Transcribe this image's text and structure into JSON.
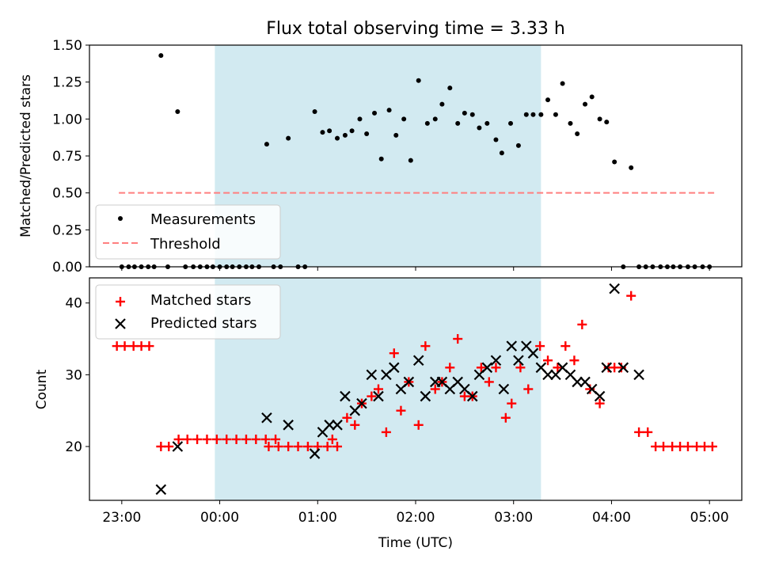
{
  "chart_data": [
    {
      "type": "scatter",
      "title": "Flux total observing time = 3.33 h",
      "xlabel": "",
      "ylabel": "Matched/Predicted stars",
      "ylim": [
        0,
        1.5
      ],
      "yticks": [
        "0.00",
        "0.25",
        "0.50",
        "0.75",
        "1.00",
        "1.25",
        "1.50"
      ],
      "x_unit": "hours after 23:00 UTC",
      "xlim": [
        -0.33,
        6.33
      ],
      "shaded_region": [
        0.95,
        4.28
      ],
      "shaded_color": "#add8e6",
      "legend_position": "lower left",
      "series": [
        {
          "name": "Measurements",
          "marker": "dot",
          "color": "#000000",
          "points": [
            [
              0.0,
              0
            ],
            [
              0.07,
              0
            ],
            [
              0.13,
              0
            ],
            [
              0.2,
              0
            ],
            [
              0.27,
              0
            ],
            [
              0.33,
              0
            ],
            [
              0.4,
              1.43
            ],
            [
              0.47,
              0
            ],
            [
              0.57,
              1.05
            ],
            [
              0.65,
              0
            ],
            [
              0.73,
              0
            ],
            [
              0.8,
              0
            ],
            [
              0.87,
              0
            ],
            [
              0.93,
              0
            ],
            [
              1.0,
              0
            ],
            [
              1.07,
              0
            ],
            [
              1.13,
              0
            ],
            [
              1.2,
              0
            ],
            [
              1.27,
              0
            ],
            [
              1.33,
              0
            ],
            [
              1.4,
              0
            ],
            [
              1.48,
              0.83
            ],
            [
              1.55,
              0
            ],
            [
              1.62,
              0
            ],
            [
              1.7,
              0.87
            ],
            [
              1.8,
              0
            ],
            [
              1.87,
              0
            ],
            [
              1.97,
              1.05
            ],
            [
              2.05,
              0.91
            ],
            [
              2.12,
              0.92
            ],
            [
              2.2,
              0.87
            ],
            [
              2.28,
              0.89
            ],
            [
              2.35,
              0.92
            ],
            [
              2.43,
              1.0
            ],
            [
              2.5,
              0.9
            ],
            [
              2.58,
              1.04
            ],
            [
              2.65,
              0.73
            ],
            [
              2.73,
              1.06
            ],
            [
              2.8,
              0.89
            ],
            [
              2.88,
              1.0
            ],
            [
              2.95,
              0.72
            ],
            [
              3.03,
              1.26
            ],
            [
              3.12,
              0.97
            ],
            [
              3.2,
              1.0
            ],
            [
              3.27,
              1.1
            ],
            [
              3.35,
              1.21
            ],
            [
              3.43,
              0.97
            ],
            [
              3.5,
              1.04
            ],
            [
              3.58,
              1.03
            ],
            [
              3.65,
              0.94
            ],
            [
              3.73,
              0.97
            ],
            [
              3.82,
              0.86
            ],
            [
              3.88,
              0.77
            ],
            [
              3.97,
              0.97
            ],
            [
              4.05,
              0.82
            ],
            [
              4.13,
              1.03
            ],
            [
              4.2,
              1.03
            ],
            [
              4.28,
              1.03
            ],
            [
              4.35,
              1.13
            ],
            [
              4.43,
              1.03
            ],
            [
              4.5,
              1.24
            ],
            [
              4.58,
              0.97
            ],
            [
              4.65,
              0.9
            ],
            [
              4.73,
              1.1
            ],
            [
              4.8,
              1.15
            ],
            [
              4.88,
              1.0
            ],
            [
              4.95,
              0.98
            ],
            [
              5.03,
              0.71
            ],
            [
              5.12,
              0
            ],
            [
              5.2,
              0.67
            ],
            [
              5.28,
              0
            ],
            [
              5.35,
              0
            ],
            [
              5.42,
              0
            ],
            [
              5.5,
              0
            ],
            [
              5.57,
              0
            ],
            [
              5.63,
              0
            ],
            [
              5.7,
              0
            ],
            [
              5.78,
              0
            ],
            [
              5.85,
              0
            ],
            [
              5.93,
              0
            ],
            [
              6.0,
              0
            ]
          ]
        },
        {
          "name": "Threshold",
          "marker": "dashed-line",
          "color": "#ff7f7f",
          "points": [
            [
              -0.03,
              0.5
            ],
            [
              6.05,
              0.5
            ]
          ]
        }
      ]
    },
    {
      "type": "scatter",
      "title": "",
      "xlabel": "Time (UTC)",
      "ylabel": "Count",
      "ylim": [
        12.5,
        43.5
      ],
      "yticks": [
        "20",
        "30",
        "40"
      ],
      "xticks": [
        "23:00",
        "00:00",
        "01:00",
        "02:00",
        "03:00",
        "04:00",
        "05:00"
      ],
      "x_unit": "hours after 23:00 UTC",
      "xlim": [
        -0.33,
        6.33
      ],
      "shaded_region": [
        0.95,
        4.28
      ],
      "shaded_color": "#add8e6",
      "legend_position": "upper left",
      "series": [
        {
          "name": "Matched stars",
          "marker": "plus",
          "color": "#ff0000",
          "points": [
            [
              -0.05,
              34
            ],
            [
              0.03,
              34
            ],
            [
              0.12,
              34
            ],
            [
              0.2,
              34
            ],
            [
              0.28,
              34
            ],
            [
              0.4,
              20
            ],
            [
              0.48,
              20
            ],
            [
              0.58,
              21
            ],
            [
              0.67,
              21
            ],
            [
              0.77,
              21
            ],
            [
              0.87,
              21
            ],
            [
              0.97,
              21
            ],
            [
              1.07,
              21
            ],
            [
              1.17,
              21
            ],
            [
              1.27,
              21
            ],
            [
              1.37,
              21
            ],
            [
              1.47,
              21
            ],
            [
              1.57,
              21
            ],
            [
              1.5,
              20
            ],
            [
              1.6,
              20
            ],
            [
              1.7,
              20
            ],
            [
              1.8,
              20
            ],
            [
              1.9,
              20
            ],
            [
              2.0,
              20
            ],
            [
              2.1,
              20
            ],
            [
              2.2,
              20
            ],
            [
              2.15,
              21
            ],
            [
              2.3,
              24
            ],
            [
              2.38,
              23
            ],
            [
              2.45,
              26
            ],
            [
              2.55,
              27
            ],
            [
              2.62,
              28
            ],
            [
              2.7,
              22
            ],
            [
              2.78,
              33
            ],
            [
              2.85,
              25
            ],
            [
              2.93,
              29
            ],
            [
              3.03,
              23
            ],
            [
              3.1,
              34
            ],
            [
              3.2,
              28
            ],
            [
              3.27,
              29
            ],
            [
              3.35,
              31
            ],
            [
              3.43,
              35
            ],
            [
              3.5,
              27
            ],
            [
              3.58,
              27
            ],
            [
              3.67,
              31
            ],
            [
              3.75,
              29
            ],
            [
              3.82,
              31
            ],
            [
              3.92,
              24
            ],
            [
              3.98,
              26
            ],
            [
              4.07,
              31
            ],
            [
              4.15,
              28
            ],
            [
              4.27,
              34
            ],
            [
              4.35,
              32
            ],
            [
              4.45,
              31
            ],
            [
              4.53,
              34
            ],
            [
              4.62,
              32
            ],
            [
              4.7,
              37
            ],
            [
              4.78,
              28
            ],
            [
              4.88,
              26
            ],
            [
              4.97,
              31
            ],
            [
              5.03,
              31
            ],
            [
              5.1,
              31
            ],
            [
              5.2,
              41
            ],
            [
              5.28,
              22
            ],
            [
              5.37,
              22
            ],
            [
              5.45,
              20
            ],
            [
              5.53,
              20
            ],
            [
              5.62,
              20
            ],
            [
              5.7,
              20
            ],
            [
              5.78,
              20
            ],
            [
              5.87,
              20
            ],
            [
              5.95,
              20
            ],
            [
              6.03,
              20
            ]
          ]
        },
        {
          "name": "Predicted stars",
          "marker": "x",
          "color": "#000000",
          "points": [
            [
              0.4,
              14
            ],
            [
              0.57,
              20
            ],
            [
              1.48,
              24
            ],
            [
              1.7,
              23
            ],
            [
              1.97,
              19
            ],
            [
              2.05,
              22
            ],
            [
              2.12,
              23
            ],
            [
              2.2,
              23
            ],
            [
              2.28,
              27
            ],
            [
              2.38,
              25
            ],
            [
              2.45,
              26
            ],
            [
              2.55,
              30
            ],
            [
              2.62,
              27
            ],
            [
              2.7,
              30
            ],
            [
              2.78,
              31
            ],
            [
              2.85,
              28
            ],
            [
              2.93,
              29
            ],
            [
              3.03,
              32
            ],
            [
              3.1,
              27
            ],
            [
              3.2,
              29
            ],
            [
              3.27,
              29
            ],
            [
              3.35,
              28
            ],
            [
              3.43,
              29
            ],
            [
              3.5,
              28
            ],
            [
              3.58,
              27
            ],
            [
              3.65,
              30
            ],
            [
              3.73,
              31
            ],
            [
              3.82,
              32
            ],
            [
              3.9,
              28
            ],
            [
              3.98,
              34
            ],
            [
              4.05,
              32
            ],
            [
              4.13,
              34
            ],
            [
              4.2,
              33
            ],
            [
              4.28,
              31
            ],
            [
              4.35,
              30
            ],
            [
              4.43,
              30
            ],
            [
              4.5,
              31
            ],
            [
              4.58,
              30
            ],
            [
              4.65,
              29
            ],
            [
              4.73,
              29
            ],
            [
              4.8,
              28
            ],
            [
              4.88,
              27
            ],
            [
              4.95,
              31
            ],
            [
              5.03,
              42
            ],
            [
              5.12,
              31
            ],
            [
              5.28,
              30
            ]
          ]
        }
      ]
    }
  ]
}
